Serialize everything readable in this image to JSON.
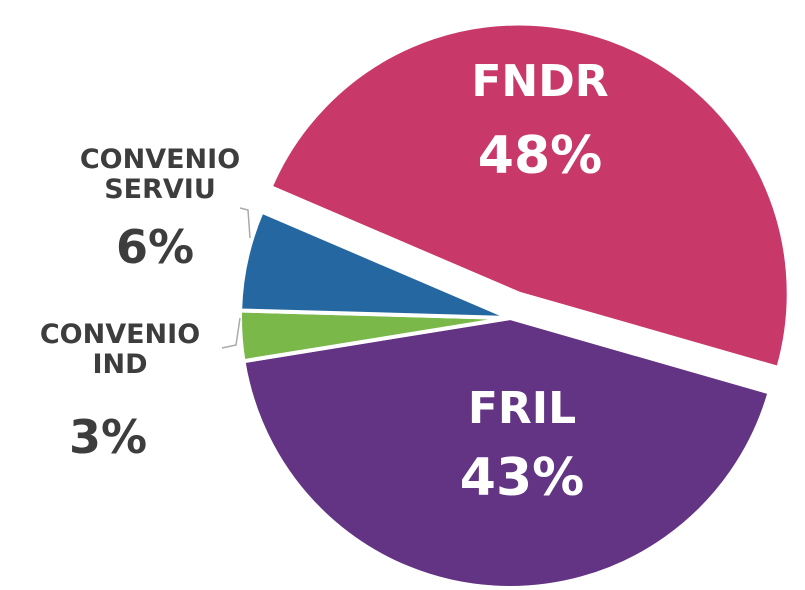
{
  "chart_data": {
    "type": "pie",
    "categories": [
      "FNDR",
      "FRIL",
      "CONVENIO IND",
      "CONVENIO SERVIU"
    ],
    "values": [
      48,
      43,
      3,
      6
    ],
    "value_labels": [
      "48%",
      "43%",
      "3%",
      "6%"
    ],
    "colors": [
      "#c8396a",
      "#633384",
      "#7ab84a",
      "#2568a1"
    ]
  }
}
